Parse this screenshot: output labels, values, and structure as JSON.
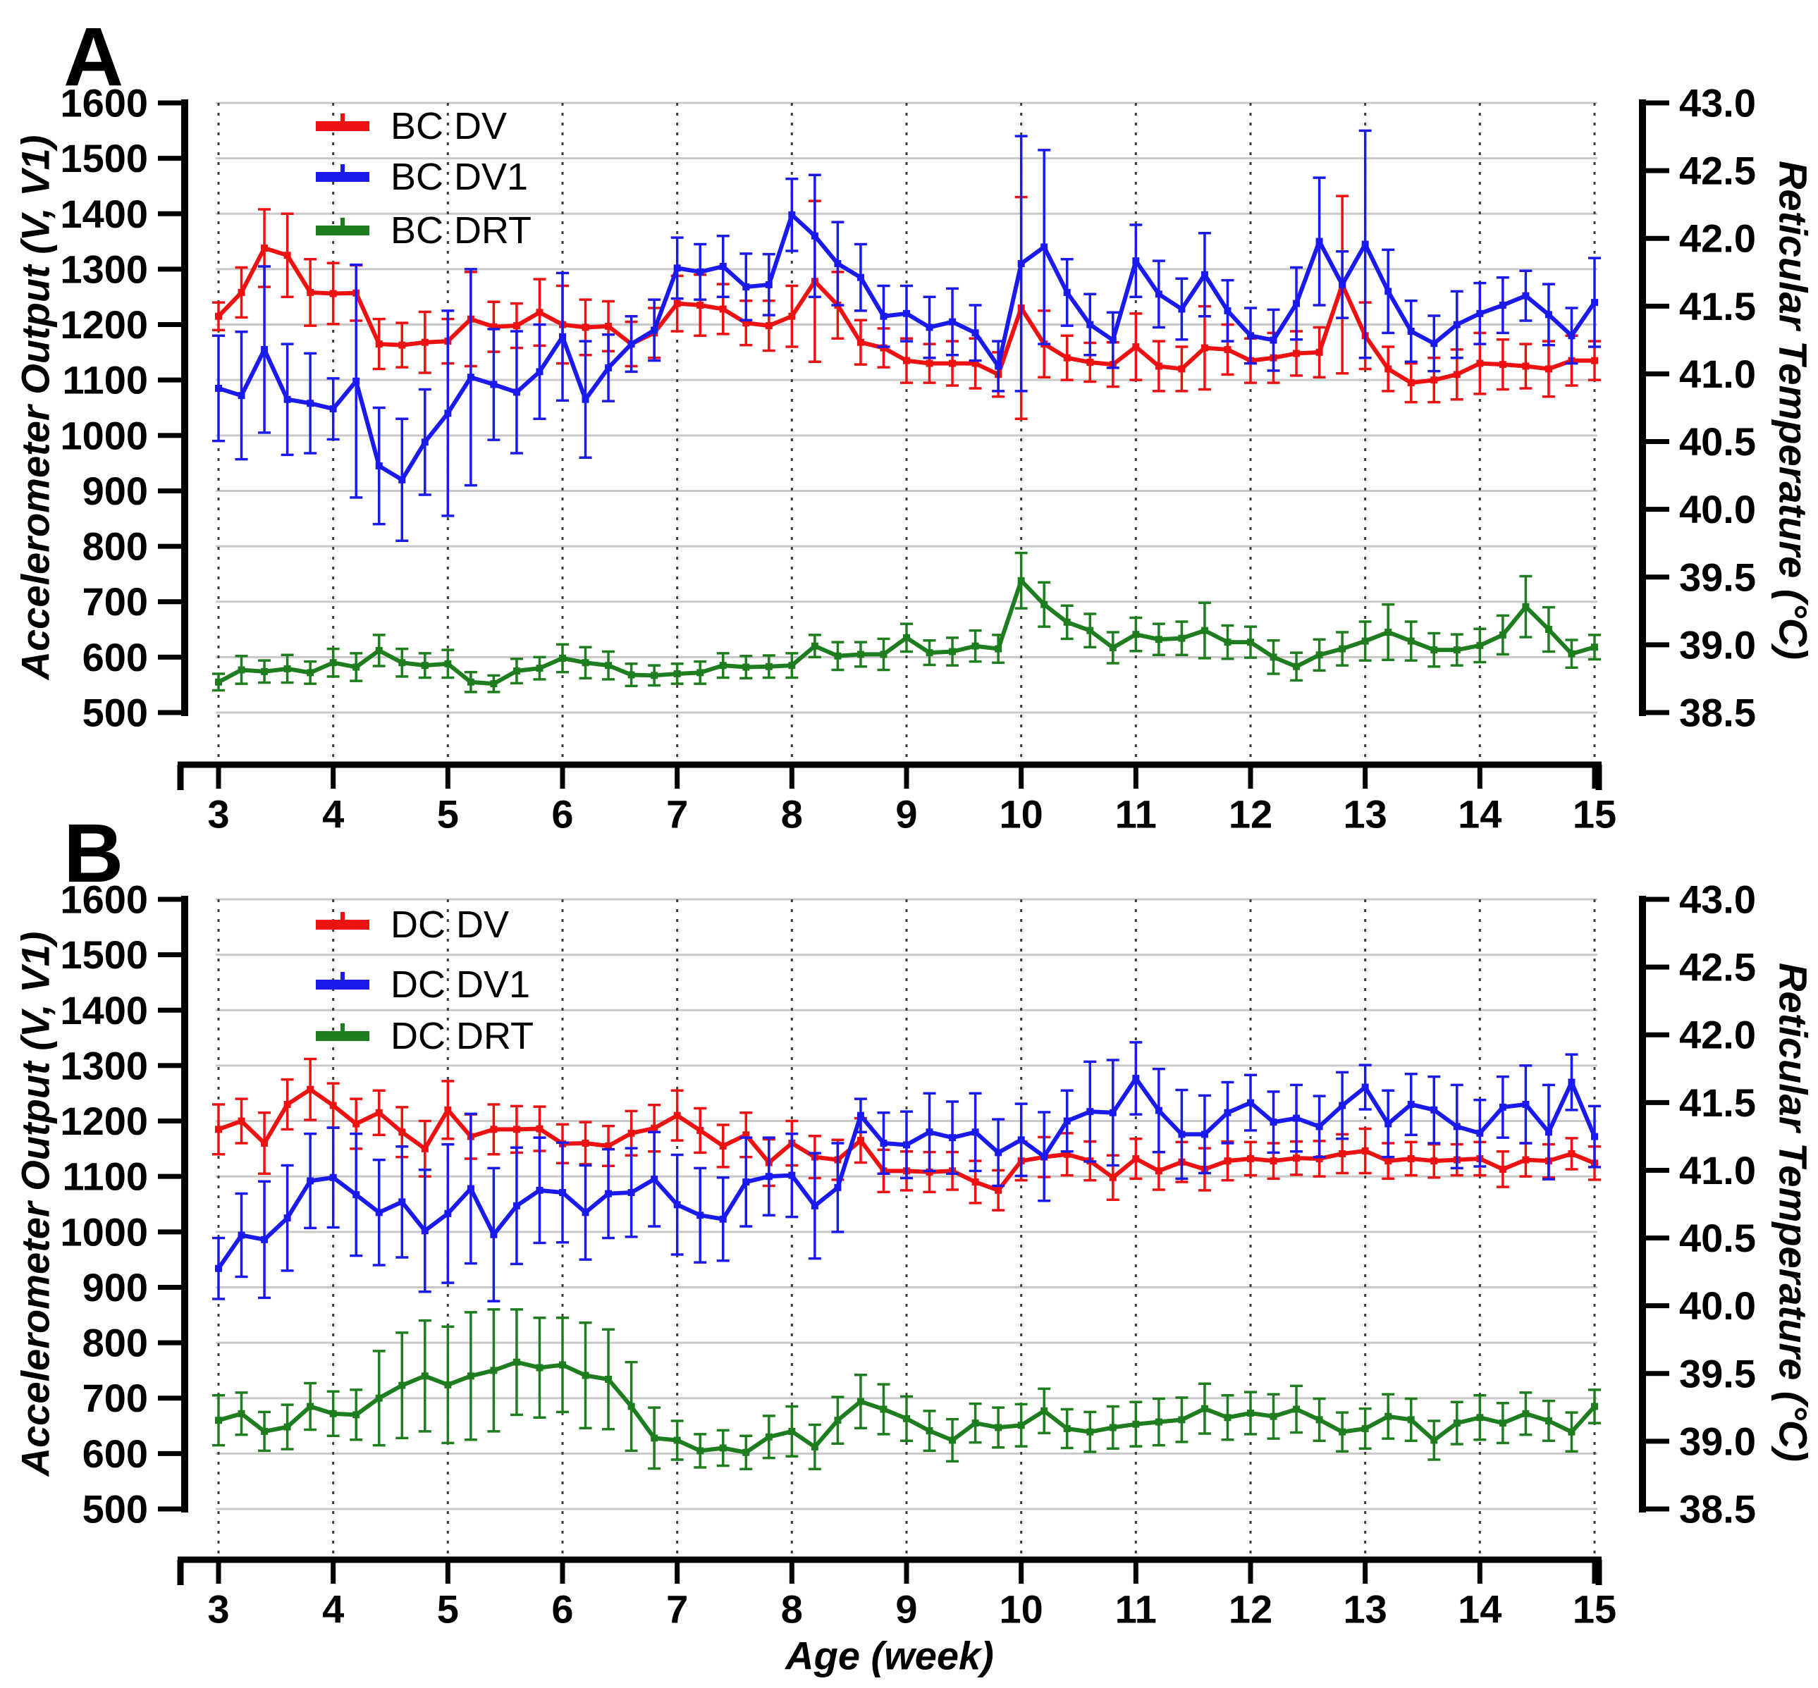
{
  "figure": {
    "background_color": "#ffffff",
    "grid_color": "#c9c9c9",
    "dotted_grid_color": "#3c3c3c",
    "axis_color": "#000000"
  },
  "chart_data": [
    {
      "panel_label": "A",
      "type": "line",
      "legend_position": "top-left-inside",
      "grid": {
        "horizontal": "solid",
        "vertical": "dotted-at-integer-weeks"
      },
      "x_axis": {
        "label": "",
        "min": 3,
        "max": 15,
        "tick_labels": [
          "3",
          "4",
          "5",
          "6",
          "7",
          "8",
          "9",
          "10",
          "11",
          "12",
          "13",
          "14",
          "15"
        ]
      },
      "left_axis": {
        "label": "Accelerometer Output  (V, V1)",
        "min": 500,
        "max": 1600,
        "tick_step": 100,
        "tick_labels": [
          "1600",
          "1500",
          "1400",
          "1300",
          "1200",
          "1100",
          "1000",
          "900",
          "800",
          "700",
          "600",
          "500"
        ]
      },
      "right_axis": {
        "label": "Reticular Temperature (°C)",
        "min": 38.5,
        "max": 43.0,
        "tick_step": 0.5,
        "tick_labels": [
          "43.0",
          "42.5",
          "42.0",
          "41.5",
          "41.0",
          "40.5",
          "40.0",
          "39.5",
          "39.0",
          "38.5"
        ],
        "note": "temperature_c = 38.5 + (left_axis_value - 500) * 4.5 / 1100"
      },
      "x_values": [
        3,
        3.2,
        3.4,
        3.6,
        3.8,
        4,
        4.2,
        4.4,
        4.6,
        4.8,
        5,
        5.2,
        5.4,
        5.6,
        5.8,
        6,
        6.2,
        6.4,
        6.6,
        6.8,
        7,
        7.2,
        7.4,
        7.6,
        7.8,
        8,
        8.2,
        8.4,
        8.6,
        8.8,
        9,
        9.2,
        9.4,
        9.6,
        9.8,
        10,
        10.2,
        10.4,
        10.6,
        10.8,
        11,
        11.2,
        11.4,
        11.6,
        11.8,
        12,
        12.2,
        12.4,
        12.6,
        12.8,
        13,
        13.2,
        13.4,
        13.6,
        13.8,
        14,
        14.2,
        14.4,
        14.6,
        14.8,
        15
      ],
      "series": [
        {
          "name": "BC DV",
          "color": "#ee1111",
          "axis": "left",
          "values": [
            1215,
            1258,
            1338,
            1325,
            1258,
            1256,
            1257,
            1165,
            1163,
            1168,
            1170,
            1210,
            1196,
            1198,
            1222,
            1200,
            1195,
            1197,
            1165,
            1185,
            1238,
            1235,
            1228,
            1203,
            1198,
            1215,
            1278,
            1235,
            1168,
            1158,
            1135,
            1130,
            1130,
            1130,
            1110,
            1230,
            1165,
            1140,
            1132,
            1128,
            1160,
            1125,
            1120,
            1158,
            1155,
            1135,
            1140,
            1148,
            1150,
            1272,
            1180,
            1120,
            1095,
            1100,
            1110,
            1130,
            1128,
            1125,
            1120,
            1135,
            1135
          ],
          "errors": [
            25,
            45,
            70,
            75,
            60,
            55,
            50,
            45,
            40,
            55,
            40,
            85,
            45,
            40,
            60,
            70,
            50,
            45,
            40,
            45,
            50,
            55,
            45,
            40,
            45,
            55,
            145,
            60,
            40,
            35,
            40,
            35,
            40,
            45,
            40,
            200,
            60,
            40,
            35,
            40,
            60,
            45,
            40,
            75,
            45,
            40,
            45,
            40,
            45,
            160,
            60,
            40,
            35,
            40,
            45,
            55,
            45,
            40,
            50,
            45,
            35
          ]
        },
        {
          "name": "BC DV1",
          "color": "#1a1aee",
          "axis": "left",
          "values": [
            1085,
            1072,
            1155,
            1065,
            1058,
            1048,
            1098,
            945,
            920,
            988,
            1040,
            1105,
            1092,
            1078,
            1115,
            1178,
            1065,
            1122,
            1165,
            1190,
            1302,
            1295,
            1305,
            1268,
            1272,
            1398,
            1360,
            1310,
            1285,
            1215,
            1220,
            1195,
            1205,
            1185,
            1125,
            1310,
            1340,
            1258,
            1200,
            1172,
            1315,
            1255,
            1228,
            1290,
            1225,
            1180,
            1172,
            1238,
            1350,
            1272,
            1345,
            1260,
            1188,
            1166,
            1200,
            1220,
            1235,
            1252,
            1218,
            1180,
            1240
          ],
          "errors": [
            95,
            115,
            150,
            100,
            90,
            55,
            210,
            105,
            110,
            95,
            185,
            195,
            100,
            110,
            85,
            115,
            105,
            60,
            50,
            55,
            55,
            50,
            55,
            60,
            55,
            65,
            110,
            75,
            60,
            55,
            50,
            55,
            60,
            50,
            45,
            230,
            175,
            60,
            55,
            50,
            65,
            60,
            55,
            75,
            55,
            50,
            55,
            65,
            115,
            60,
            205,
            75,
            55,
            50,
            60,
            55,
            50,
            45,
            55,
            50,
            80
          ]
        },
        {
          "name": "BC DRT",
          "color": "#1e7d1e",
          "axis": "right",
          "values": [
            555,
            577,
            574,
            579,
            572,
            590,
            582,
            612,
            590,
            585,
            588,
            555,
            552,
            575,
            580,
            598,
            590,
            585,
            568,
            567,
            570,
            572,
            585,
            582,
            583,
            585,
            620,
            602,
            605,
            605,
            635,
            608,
            610,
            620,
            615,
            738,
            695,
            663,
            648,
            617,
            641,
            632,
            634,
            648,
            627,
            627,
            600,
            583,
            604,
            615,
            629,
            645,
            629,
            613,
            613,
            621,
            640,
            691,
            650,
            606,
            618
          ],
          "errors": [
            15,
            25,
            20,
            25,
            20,
            25,
            25,
            28,
            25,
            22,
            25,
            18,
            15,
            22,
            20,
            25,
            28,
            25,
            20,
            18,
            18,
            20,
            22,
            20,
            20,
            22,
            20,
            25,
            22,
            28,
            25,
            22,
            25,
            28,
            25,
            50,
            40,
            30,
            30,
            28,
            30,
            28,
            30,
            50,
            30,
            28,
            30,
            25,
            28,
            30,
            35,
            50,
            35,
            30,
            28,
            30,
            35,
            55,
            40,
            25,
            22
          ]
        }
      ]
    },
    {
      "panel_label": "B",
      "type": "line",
      "legend_position": "top-left-inside",
      "grid": {
        "horizontal": "solid",
        "vertical": "dotted-at-integer-weeks"
      },
      "x_axis": {
        "label": "Age (week)",
        "min": 3,
        "max": 15,
        "tick_labels": [
          "3",
          "4",
          "5",
          "6",
          "7",
          "8",
          "9",
          "10",
          "11",
          "12",
          "13",
          "14",
          "15"
        ]
      },
      "left_axis": {
        "label": "Accelerometer Output  (V, V1)",
        "min": 500,
        "max": 1600,
        "tick_step": 100,
        "tick_labels": [
          "1600",
          "1500",
          "1400",
          "1300",
          "1200",
          "1100",
          "1000",
          "900",
          "800",
          "700",
          "600",
          "500"
        ]
      },
      "right_axis": {
        "label": "Reticular Temperature (°C)",
        "min": 38.5,
        "max": 43.0,
        "tick_step": 0.5,
        "tick_labels": [
          "43.0",
          "42.5",
          "42.0",
          "41.5",
          "41.0",
          "40.5",
          "40.0",
          "39.5",
          "39.0",
          "38.5"
        ],
        "note": "temperature_c = 38.5 + (left_axis_value - 500) * 4.5 / 1100"
      },
      "x_values": [
        3,
        3.2,
        3.4,
        3.6,
        3.8,
        4,
        4.2,
        4.4,
        4.6,
        4.8,
        5,
        5.2,
        5.4,
        5.6,
        5.8,
        6,
        6.2,
        6.4,
        6.6,
        6.8,
        7,
        7.2,
        7.4,
        7.6,
        7.8,
        8,
        8.2,
        8.4,
        8.6,
        8.8,
        9,
        9.2,
        9.4,
        9.6,
        9.8,
        10,
        10.2,
        10.4,
        10.6,
        10.8,
        11,
        11.2,
        11.4,
        11.6,
        11.8,
        12,
        12.2,
        12.4,
        12.6,
        12.8,
        13,
        13.2,
        13.4,
        13.6,
        13.8,
        14,
        14.2,
        14.4,
        14.6,
        14.8,
        15
      ],
      "series": [
        {
          "name": "DC DV",
          "color": "#ee1111",
          "axis": "left",
          "values": [
            1185,
            1200,
            1160,
            1230,
            1257,
            1228,
            1195,
            1215,
            1180,
            1150,
            1220,
            1172,
            1185,
            1185,
            1186,
            1159,
            1160,
            1155,
            1178,
            1187,
            1210,
            1183,
            1155,
            1175,
            1125,
            1160,
            1135,
            1130,
            1165,
            1110,
            1110,
            1108,
            1110,
            1090,
            1075,
            1128,
            1135,
            1140,
            1128,
            1098,
            1132,
            1110,
            1126,
            1113,
            1128,
            1132,
            1128,
            1133,
            1132,
            1141,
            1146,
            1128,
            1132,
            1128,
            1130,
            1132,
            1113,
            1130,
            1128,
            1141,
            1124
          ],
          "errors": [
            45,
            40,
            55,
            45,
            55,
            40,
            45,
            40,
            45,
            50,
            52,
            40,
            45,
            42,
            40,
            35,
            38,
            36,
            40,
            42,
            45,
            40,
            38,
            40,
            42,
            40,
            38,
            36,
            40,
            38,
            35,
            36,
            34,
            38,
            36,
            35,
            36,
            38,
            35,
            40,
            36,
            34,
            36,
            38,
            35,
            30,
            32,
            30,
            32,
            35,
            40,
            32,
            30,
            30,
            28,
            30,
            32,
            30,
            30,
            28,
            30
          ]
        },
        {
          "name": "DC DV1",
          "color": "#1a1aee",
          "axis": "left",
          "values": [
            934,
            994,
            986,
            1025,
            1092,
            1098,
            1067,
            1035,
            1054,
            1002,
            1033,
            1078,
            995,
            1047,
            1075,
            1071,
            1035,
            1069,
            1071,
            1095,
            1049,
            1030,
            1023,
            1090,
            1100,
            1102,
            1047,
            1080,
            1210,
            1160,
            1157,
            1180,
            1170,
            1180,
            1143,
            1166,
            1136,
            1200,
            1217,
            1215,
            1277,
            1219,
            1176,
            1176,
            1215,
            1233,
            1198,
            1205,
            1190,
            1228,
            1261,
            1195,
            1230,
            1220,
            1190,
            1178,
            1225,
            1230,
            1180,
            1270,
            1172
          ],
          "errors": [
            55,
            75,
            105,
            95,
            85,
            90,
            110,
            95,
            100,
            110,
            125,
            135,
            120,
            105,
            95,
            90,
            85,
            80,
            80,
            85,
            90,
            85,
            75,
            80,
            70,
            75,
            95,
            80,
            30,
            55,
            60,
            70,
            65,
            70,
            60,
            65,
            80,
            55,
            90,
            95,
            65,
            75,
            80,
            70,
            55,
            50,
            55,
            60,
            55,
            60,
            40,
            60,
            55,
            60,
            75,
            60,
            55,
            70,
            85,
            50,
            55
          ]
        },
        {
          "name": "DC DRT",
          "color": "#1e7d1e",
          "axis": "right",
          "values": [
            660,
            672,
            640,
            648,
            685,
            672,
            670,
            700,
            723,
            740,
            724,
            740,
            750,
            765,
            755,
            760,
            741,
            734,
            685,
            628,
            624,
            605,
            610,
            602,
            630,
            640,
            612,
            660,
            694,
            680,
            663,
            641,
            624,
            655,
            647,
            651,
            677,
            645,
            639,
            647,
            653,
            657,
            661,
            681,
            665,
            673,
            667,
            680,
            661,
            639,
            645,
            667,
            661,
            624,
            655,
            665,
            655,
            672,
            659,
            639,
            685
          ],
          "errors": [
            45,
            38,
            35,
            40,
            42,
            40,
            45,
            85,
            95,
            100,
            105,
            115,
            110,
            95,
            90,
            85,
            95,
            90,
            80,
            55,
            35,
            30,
            32,
            30,
            38,
            45,
            40,
            42,
            48,
            45,
            40,
            36,
            38,
            35,
            36,
            38,
            40,
            35,
            36,
            38,
            40,
            42,
            40,
            45,
            40,
            38,
            40,
            42,
            38,
            35,
            36,
            40,
            38,
            35,
            38,
            40,
            36,
            38,
            36,
            35,
            30
          ]
        }
      ]
    }
  ]
}
